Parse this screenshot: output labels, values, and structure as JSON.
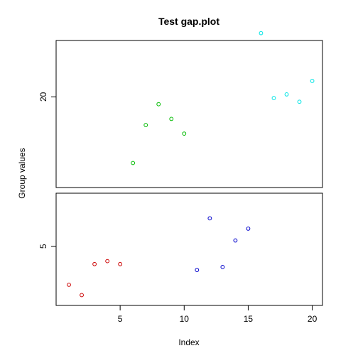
{
  "chart_data": {
    "type": "scatter",
    "title": "Test gap.plot",
    "xlabel": "Index",
    "ylabel": "Group values",
    "xlim": [
      0,
      20.8
    ],
    "x_ticks": [
      5,
      10,
      15,
      20
    ],
    "x_tick_labels": [
      "5",
      "10",
      "15",
      "20"
    ],
    "grid": false,
    "legend": "none",
    "panels": [
      {
        "position": "upper",
        "ylim": [
          16.3,
          22.3
        ],
        "y_ticks": [
          20
        ],
        "y_tick_labels": [
          "20"
        ]
      },
      {
        "position": "lower",
        "ylim": [
          3.0,
          6.8
        ],
        "y_ticks": [
          5
        ],
        "y_tick_labels": [
          "5"
        ]
      }
    ],
    "series": [
      {
        "color": "#cc0000",
        "panel": "lower",
        "x": [
          1,
          2,
          3,
          4,
          5
        ],
        "y": [
          3.7,
          3.35,
          4.4,
          4.5,
          4.4
        ]
      },
      {
        "color": "#0000cc",
        "panel": "lower",
        "x": [
          11,
          12,
          13,
          14,
          15
        ],
        "y": [
          4.2,
          5.95,
          4.3,
          5.2,
          5.6
        ]
      },
      {
        "color": "#00bb00",
        "panel": "upper",
        "x": [
          6,
          7,
          8,
          9,
          10
        ],
        "y": [
          17.3,
          18.85,
          19.7,
          19.1,
          18.5
        ]
      },
      {
        "color": "#00e5e5",
        "panel": "upper",
        "x": [
          16,
          17,
          18,
          19,
          20
        ],
        "y": [
          22.6,
          19.95,
          20.1,
          19.8,
          20.65
        ]
      }
    ]
  }
}
